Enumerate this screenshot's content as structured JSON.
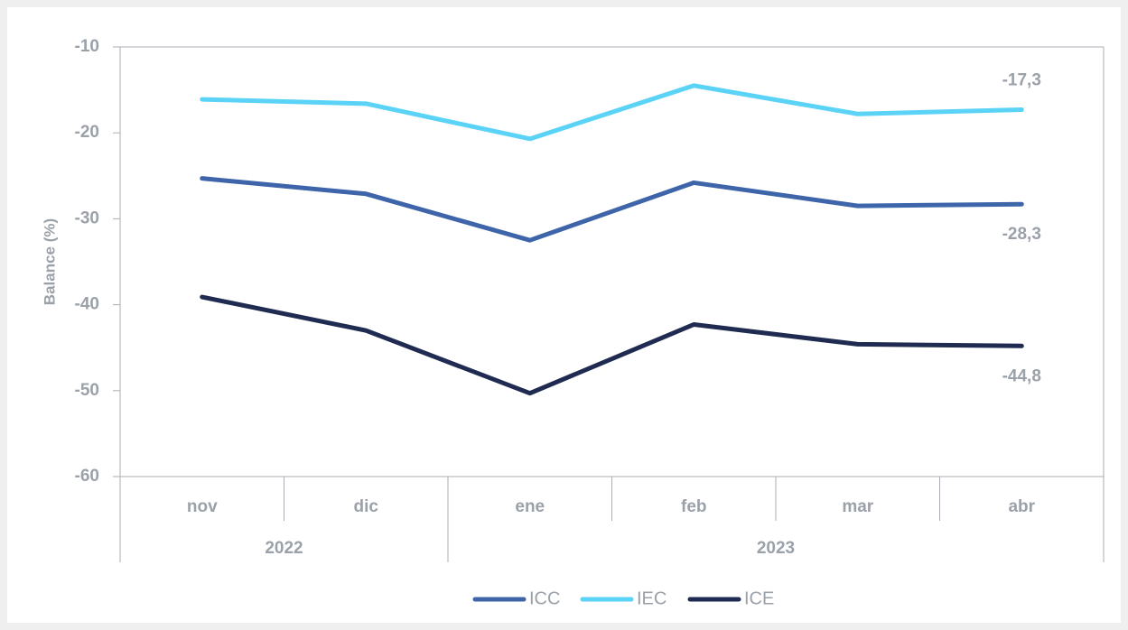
{
  "chart_data": {
    "type": "line",
    "y_label": "Balance (%)",
    "categories": [
      "nov",
      "dic",
      "ene",
      "feb",
      "mar",
      "abr"
    ],
    "x_groups": [
      {
        "label": "2022",
        "count": 2
      },
      {
        "label": "2023",
        "count": 4
      }
    ],
    "series": [
      {
        "name": "ICC",
        "color": "#3e64a9",
        "values": [
          -25.3,
          -27.1,
          -32.5,
          -25.8,
          -28.5,
          -28.3
        ],
        "value_labels": [
          null,
          null,
          null,
          null,
          null,
          "-28,3"
        ]
      },
      {
        "name": "IEC",
        "color": "#5bd3f6",
        "values": [
          -16.1,
          -16.6,
          -20.7,
          -14.5,
          -17.8,
          -17.3
        ],
        "value_labels": [
          null,
          null,
          null,
          null,
          null,
          "-17,3"
        ]
      },
      {
        "name": "ICE",
        "color": "#1f2b50",
        "values": [
          -39.1,
          -43.0,
          -50.3,
          -42.3,
          -44.6,
          -44.8
        ],
        "value_labels": [
          null,
          null,
          null,
          null,
          null,
          "-44,8"
        ]
      }
    ],
    "ylim": [
      -60,
      -10
    ],
    "yticks": [
      -60,
      -50,
      -40,
      -30,
      -20,
      -10
    ],
    "grid": false
  }
}
